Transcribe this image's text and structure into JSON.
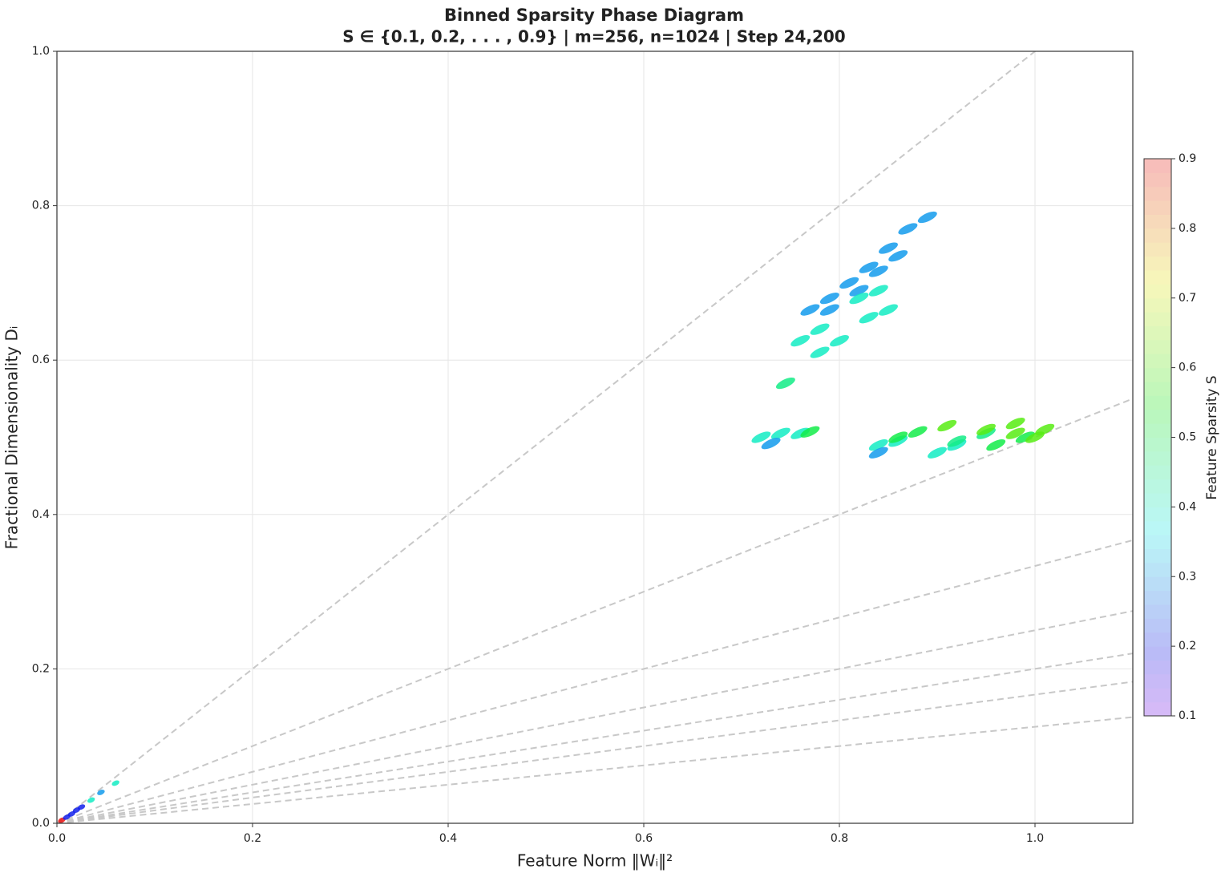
{
  "chart_data": {
    "type": "scatter",
    "title": "Binned Sparsity Phase Diagram",
    "subtitle": "S ∈ {0.1, 0.2, . . . , 0.9} | m=256, n=1024 | Step 24,200",
    "x_label": "Feature Norm ‖Wᵢ‖²",
    "y_label": "Fractional Dimensionality Dᵢ",
    "xlim": [
      0,
      1.1
    ],
    "ylim": [
      0,
      1
    ],
    "xticks": [
      {
        "value": 0,
        "label": "0.0"
      },
      0.2,
      0.4,
      0.6,
      0.8,
      {
        "value": 1,
        "label": "1.0"
      }
    ],
    "yticks": [
      {
        "value": 0,
        "label": "0.0"
      },
      0.2,
      0.4,
      0.6,
      0.8,
      {
        "value": 1,
        "label": "1.0"
      }
    ],
    "grid": true,
    "reference_line_denominators": [
      1,
      2,
      3,
      4,
      5,
      6,
      8
    ],
    "colormap": "rainbow",
    "points": {
      "x": [
        0.77,
        0.79,
        0.81,
        0.83,
        0.85,
        0.87,
        0.89,
        0.79,
        0.82,
        0.84,
        0.86,
        0.82,
        0.84,
        0.76,
        0.78,
        0.78,
        0.8,
        0.83,
        0.85,
        0.745,
        0.72,
        0.74,
        0.76,
        0.73,
        0.77,
        0.84,
        0.86,
        0.84,
        0.86,
        0.88,
        0.91,
        0.9,
        0.92,
        0.92,
        0.95,
        0.95,
        0.98,
        0.96,
        0.99,
        0.98,
        1.01,
        1.0,
        0.005,
        0.01,
        0.015,
        0.02,
        0.025,
        0.035,
        0.045,
        0.06
      ],
      "y": [
        0.665,
        0.68,
        0.7,
        0.72,
        0.745,
        0.77,
        0.785,
        0.665,
        0.69,
        0.715,
        0.735,
        0.68,
        0.69,
        0.625,
        0.64,
        0.61,
        0.625,
        0.655,
        0.665,
        0.57,
        0.5,
        0.505,
        0.505,
        0.492,
        0.507,
        0.49,
        0.495,
        0.48,
        0.5,
        0.507,
        0.515,
        0.48,
        0.49,
        0.495,
        0.505,
        0.51,
        0.518,
        0.49,
        0.5,
        0.505,
        0.51,
        0.5,
        0.004,
        0.008,
        0.012,
        0.017,
        0.021,
        0.03,
        0.04,
        0.052
      ],
      "sparsity": [
        0.3,
        0.3,
        0.3,
        0.3,
        0.3,
        0.3,
        0.3,
        0.3,
        0.3,
        0.3,
        0.3,
        0.4,
        0.4,
        0.4,
        0.4,
        0.4,
        0.4,
        0.4,
        0.4,
        0.45,
        0.4,
        0.4,
        0.4,
        0.3,
        0.5,
        0.4,
        0.4,
        0.3,
        0.5,
        0.5,
        0.6,
        0.4,
        0.4,
        0.45,
        0.45,
        0.6,
        0.6,
        0.5,
        0.5,
        0.6,
        0.6,
        0.6,
        0.9,
        0.2,
        0.2,
        0.2,
        0.2,
        0.4,
        0.3,
        0.4
      ]
    },
    "colorbar": {
      "label": "Feature Sparsity S",
      "lim": [
        0.1,
        0.9
      ],
      "ticks": [
        0.1,
        0.2,
        0.3,
        0.4,
        0.5,
        0.6,
        0.7,
        0.8,
        0.9
      ]
    }
  }
}
